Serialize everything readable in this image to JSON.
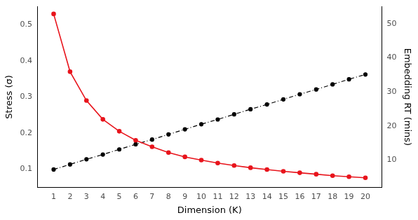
{
  "chart_data": {
    "type": "line",
    "xlabel": "Dimension (K)",
    "ylabel": "Stress (σ)",
    "y2label": "Embedding RT (mins)",
    "x": [
      1,
      2,
      3,
      4,
      5,
      6,
      7,
      8,
      9,
      10,
      11,
      12,
      13,
      14,
      15,
      16,
      17,
      18,
      19,
      20
    ],
    "series": [
      {
        "color": "#e8141c",
        "marker": "circle",
        "line_style": "solid",
        "values": [
          0.53,
          0.37,
          0.29,
          0.238,
          0.205,
          0.18,
          0.162,
          0.146,
          0.134,
          0.125,
          0.117,
          0.11,
          0.104,
          0.099,
          0.094,
          0.09,
          0.086,
          0.082,
          0.079,
          0.076
        ]
      },
      {
        "color": "#000000",
        "marker": "circle",
        "line_style": "dashdot",
        "axis": "y2",
        "values": [
          7.2,
          8.7,
          10.2,
          11.6,
          13.1,
          14.6,
          16.0,
          17.5,
          19.0,
          20.5,
          21.9,
          23.4,
          24.9,
          26.3,
          27.8,
          29.3,
          30.7,
          32.2,
          33.7,
          35.1
        ]
      }
    ],
    "xlim": [
      0,
      21
    ],
    "xticks": [
      1,
      2,
      3,
      4,
      5,
      6,
      7,
      8,
      9,
      10,
      11,
      12,
      13,
      14,
      15,
      16,
      17,
      18,
      19,
      20
    ],
    "ylim": [
      0.05,
      0.55
    ],
    "yticks": [
      0.1,
      0.2,
      0.3,
      0.4,
      0.5
    ],
    "y2lim": [
      2,
      55
    ],
    "y2ticks": [
      10,
      20,
      30,
      40,
      50
    ],
    "grid": false
  }
}
